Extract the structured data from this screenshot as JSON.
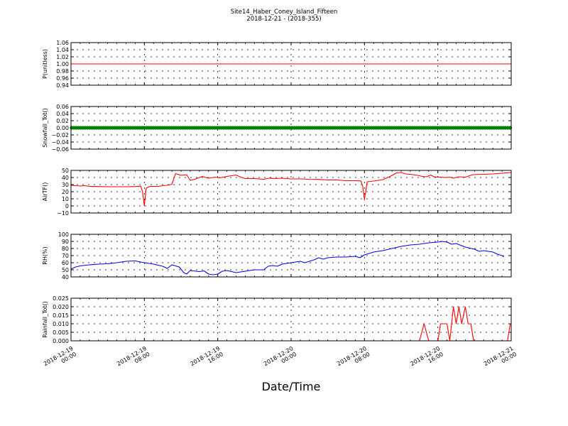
{
  "chart_data": {
    "title": "Site14_Haber_Coney_Island_Fifteen",
    "subtitle": "2018-12-21 - (2018-355)",
    "xlabel": "Date/Time",
    "x_ticks": [
      {
        "line1": "2018-12-19",
        "line2": "00:00",
        "hours": 0
      },
      {
        "line1": "2018-12-19",
        "line2": "08:00",
        "hours": 8
      },
      {
        "line1": "2018-12-19",
        "line2": "16:00",
        "hours": 16
      },
      {
        "line1": "2018-12-20",
        "line2": "00:00",
        "hours": 24
      },
      {
        "line1": "2018-12-20",
        "line2": "08:00",
        "hours": 32
      },
      {
        "line1": "2018-12-20",
        "line2": "16:00",
        "hours": 40
      },
      {
        "line1": "2018-12-21",
        "line2": "00:00",
        "hours": 48
      }
    ],
    "xlim_hours": [
      0,
      48
    ],
    "grid": true,
    "panels": [
      {
        "type": "line",
        "ylabel": "P(unitless)",
        "ylim": [
          0.94,
          1.06
        ],
        "yticks": [
          "0.94",
          "0.96",
          "0.98",
          "1.00",
          "1.02",
          "1.04",
          "1.06"
        ],
        "color": "#ff0000",
        "marker": false,
        "points": [
          [
            0,
            1.0
          ],
          [
            48,
            1.0
          ]
        ]
      },
      {
        "type": "line",
        "ylabel": "Snowfall_Tot()",
        "ylim": [
          -0.06,
          0.06
        ],
        "yticks": [
          "−0.06",
          "−0.04",
          "−0.02",
          "0.00",
          "0.02",
          "0.04",
          "0.06"
        ],
        "color": "#008000",
        "marker": true,
        "points": [
          [
            0,
            0
          ],
          [
            48,
            0
          ]
        ]
      },
      {
        "type": "line",
        "ylabel": "AirTF()",
        "ylim": [
          -10,
          50
        ],
        "yticks": [
          "−10",
          "0",
          "10",
          "20",
          "30",
          "40",
          "50"
        ],
        "color": "#ff0000",
        "marker": false,
        "points": [
          [
            0,
            29
          ],
          [
            1,
            28
          ],
          [
            1.5,
            28.5
          ],
          [
            2,
            27.5
          ],
          [
            3,
            27.3
          ],
          [
            4,
            27
          ],
          [
            5,
            27
          ],
          [
            6,
            27
          ],
          [
            7,
            27.3
          ],
          [
            7.6,
            27.8
          ],
          [
            7.8,
            20
          ],
          [
            8.0,
            0
          ],
          [
            8.2,
            25
          ],
          [
            8.6,
            27.5
          ],
          [
            9.5,
            27.5
          ],
          [
            10,
            28.5
          ],
          [
            10.5,
            29
          ],
          [
            11,
            30.5
          ],
          [
            11.4,
            45.5
          ],
          [
            12,
            43
          ],
          [
            12.6,
            44
          ],
          [
            13,
            36
          ],
          [
            13.5,
            37.5
          ],
          [
            14.3,
            41.5
          ],
          [
            15,
            39
          ],
          [
            15.7,
            40.5
          ],
          [
            16.2,
            39.5
          ],
          [
            17,
            41.5
          ],
          [
            18,
            43.5
          ],
          [
            18.5,
            40.5
          ],
          [
            19,
            38.5
          ],
          [
            20,
            38.5
          ],
          [
            21,
            37.5
          ],
          [
            21.6,
            39
          ],
          [
            22.3,
            38.5
          ],
          [
            23,
            39
          ],
          [
            24,
            38
          ],
          [
            25,
            38
          ],
          [
            26,
            37.5
          ],
          [
            27,
            37.3
          ],
          [
            28,
            36.5
          ],
          [
            29,
            36.5
          ],
          [
            30,
            35.5
          ],
          [
            31,
            35.5
          ],
          [
            31.6,
            35.2
          ],
          [
            31.8,
            28
          ],
          [
            32.0,
            9
          ],
          [
            32.3,
            34
          ],
          [
            33,
            35
          ],
          [
            34,
            37
          ],
          [
            34.8,
            41.5
          ],
          [
            35.5,
            46.5
          ],
          [
            36,
            47
          ],
          [
            36.5,
            45
          ],
          [
            37,
            44.5
          ],
          [
            37.8,
            43
          ],
          [
            38.3,
            41.5
          ],
          [
            38.8,
            41
          ],
          [
            39.2,
            43.5
          ],
          [
            39.6,
            41
          ],
          [
            40.2,
            40.5
          ],
          [
            40.8,
            40
          ],
          [
            41.3,
            40.5
          ],
          [
            41.7,
            39
          ],
          [
            42.3,
            41
          ],
          [
            43,
            40.5
          ],
          [
            43.8,
            44
          ],
          [
            45,
            44.5
          ],
          [
            46,
            45
          ],
          [
            47,
            46
          ],
          [
            48,
            47
          ]
        ]
      },
      {
        "type": "line",
        "ylabel": "RH(%)",
        "ylim": [
          40,
          100
        ],
        "yticks": [
          "40",
          "50",
          "60",
          "70",
          "80",
          "90",
          "100"
        ],
        "color": "#0000ff",
        "marker": false,
        "points": [
          [
            0,
            51
          ],
          [
            0.5,
            54
          ],
          [
            1,
            55.5
          ],
          [
            2,
            57
          ],
          [
            3,
            58
          ],
          [
            4,
            58.5
          ],
          [
            5,
            60
          ],
          [
            6,
            62
          ],
          [
            7,
            62.5
          ],
          [
            8,
            60
          ],
          [
            9,
            58
          ],
          [
            10,
            55
          ],
          [
            10.5,
            52
          ],
          [
            11,
            57
          ],
          [
            11.8,
            54
          ],
          [
            12.3,
            46
          ],
          [
            12.6,
            44
          ],
          [
            13,
            49
          ],
          [
            14,
            47.5
          ],
          [
            14.5,
            48.5
          ],
          [
            15,
            44
          ],
          [
            15.5,
            43
          ],
          [
            16,
            44
          ],
          [
            16.5,
            48
          ],
          [
            17,
            49
          ],
          [
            18,
            46
          ],
          [
            19,
            48
          ],
          [
            20,
            50
          ],
          [
            21,
            50
          ],
          [
            21.5,
            55
          ],
          [
            22,
            56
          ],
          [
            22.5,
            55
          ],
          [
            23,
            58
          ],
          [
            24,
            60
          ],
          [
            25,
            62
          ],
          [
            25.5,
            60
          ],
          [
            26,
            62
          ],
          [
            26.5,
            64
          ],
          [
            27,
            67
          ],
          [
            27.5,
            65
          ],
          [
            28,
            67
          ],
          [
            29,
            68
          ],
          [
            30,
            68
          ],
          [
            31,
            69
          ],
          [
            31.5,
            67
          ],
          [
            32,
            71
          ],
          [
            33,
            75
          ],
          [
            34,
            77
          ],
          [
            35,
            80
          ],
          [
            36,
            83
          ],
          [
            37,
            85
          ],
          [
            38,
            86
          ],
          [
            39,
            88
          ],
          [
            40,
            89
          ],
          [
            40.5,
            90
          ],
          [
            41,
            89
          ],
          [
            41.5,
            86
          ],
          [
            42,
            87
          ],
          [
            43,
            82
          ],
          [
            44,
            79
          ],
          [
            44.5,
            76
          ],
          [
            45,
            77
          ],
          [
            46,
            75
          ],
          [
            46.5,
            72
          ],
          [
            47,
            70
          ],
          [
            47.2,
            68
          ]
        ]
      },
      {
        "type": "line",
        "ylabel": "Rainfall_Tot()",
        "ylim": [
          0.0,
          0.025
        ],
        "yticks": [
          "0.000",
          "0.005",
          "0.010",
          "0.015",
          "0.020",
          "0.025"
        ],
        "color": "#ff0000",
        "marker": false,
        "points": [
          [
            0,
            0
          ],
          [
            38,
            0
          ],
          [
            38.5,
            0.01
          ],
          [
            39,
            0
          ],
          [
            40,
            0
          ],
          [
            40.3,
            0.01
          ],
          [
            41,
            0.01
          ],
          [
            41.3,
            0
          ],
          [
            41.7,
            0.02
          ],
          [
            42,
            0.01
          ],
          [
            42.3,
            0.02
          ],
          [
            42.6,
            0.01
          ],
          [
            43,
            0.02
          ],
          [
            43.3,
            0.01
          ],
          [
            43.6,
            0.01
          ],
          [
            43.9,
            0
          ],
          [
            47.6,
            0
          ],
          [
            47.9,
            0.01
          ],
          [
            48,
            0.01
          ]
        ]
      }
    ]
  }
}
